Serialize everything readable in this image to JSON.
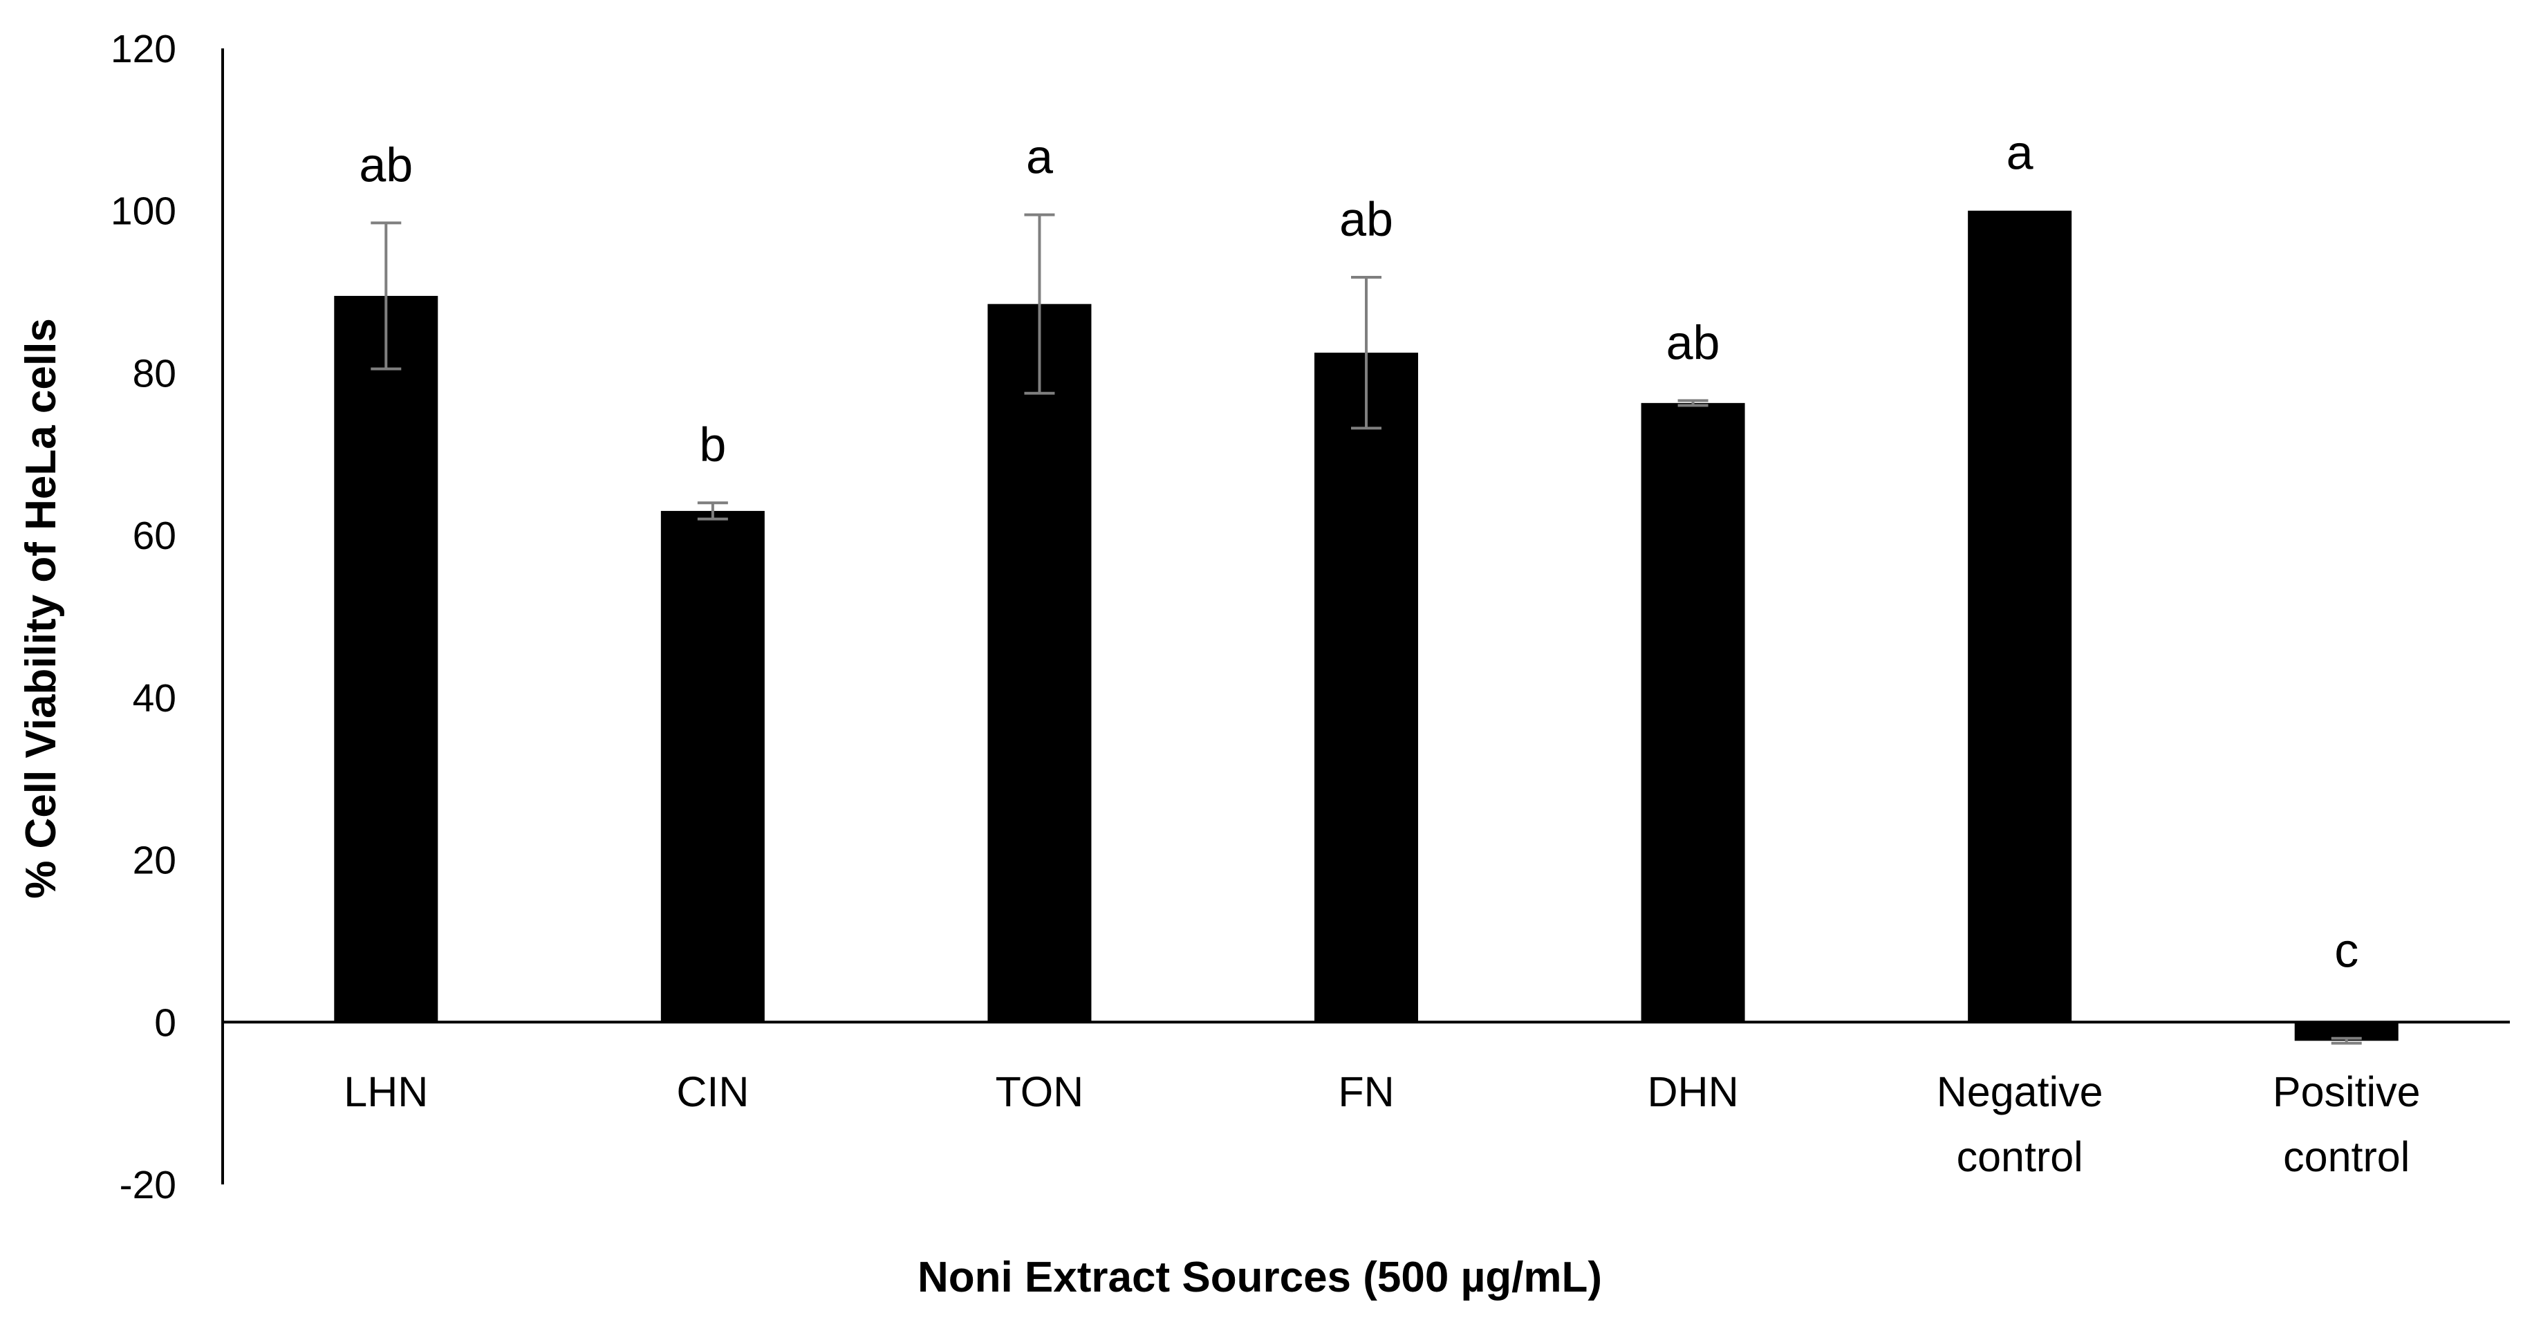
{
  "chart_data": {
    "type": "bar",
    "title": "",
    "xlabel": "Noni Extract Sources (500 µg/mL)",
    "ylabel": "% Cell Viability of HeLa cells",
    "ylim": [
      -20,
      120
    ],
    "yticks": [
      "120",
      "100",
      "80",
      "60",
      "40",
      "20",
      "0",
      "-20"
    ],
    "categories": [
      [
        "LHN"
      ],
      [
        "CIN"
      ],
      [
        "TON"
      ],
      [
        "FN"
      ],
      [
        "DHN"
      ],
      [
        "Negative",
        "control"
      ],
      [
        "Positive",
        "control"
      ]
    ],
    "values": [
      89.5,
      63,
      88.5,
      82.5,
      76.3,
      100,
      -2.3
    ],
    "errors": [
      9,
      1,
      11,
      9.3,
      0.3,
      0,
      0.3
    ],
    "significance_labels": [
      "ab",
      "b",
      "a",
      "ab",
      "ab",
      "a",
      "c"
    ],
    "bar_color": "#000000",
    "error_bar_color": "#7f7f7f",
    "grid": false,
    "legend": "none"
  }
}
